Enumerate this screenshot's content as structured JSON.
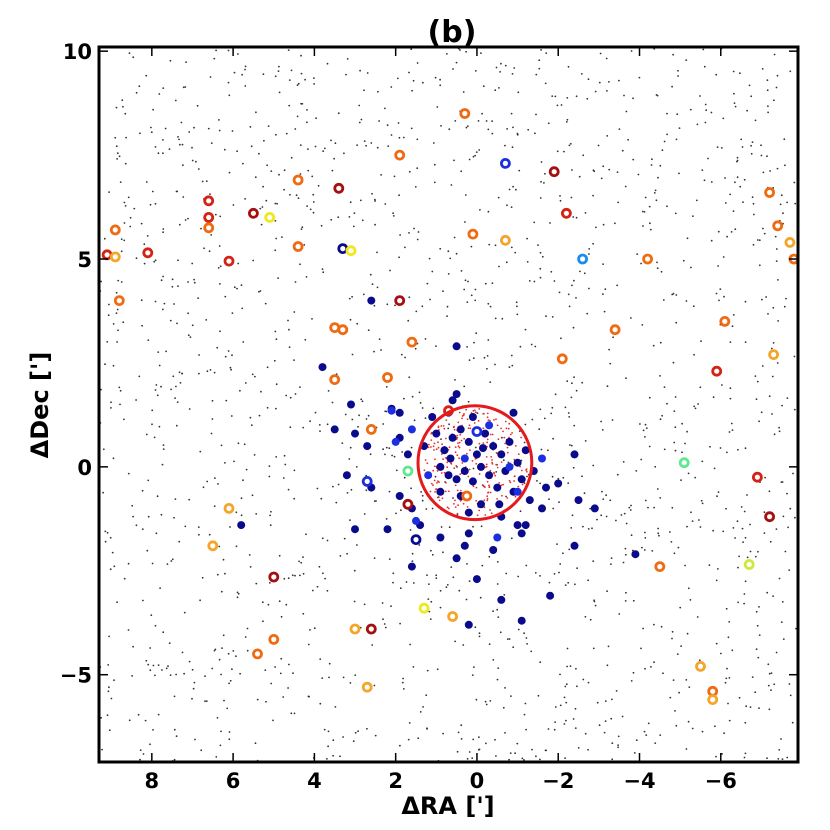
{
  "chart_data": {
    "type": "scatter",
    "title": "(b)",
    "xlabel": "ΔRA [']",
    "ylabel": "ΔDec [']",
    "xlim": [
      9.3,
      -7.9
    ],
    "ylim": [
      -7.1,
      10.1
    ],
    "x_ticks": [
      8,
      6,
      4,
      2,
      0,
      -2,
      -4,
      -6
    ],
    "x_tick_labels": [
      "8",
      "6",
      "4",
      "2",
      "0",
      "−2",
      "−4",
      "−6"
    ],
    "y_ticks": [
      -5,
      0,
      5,
      10
    ],
    "y_tick_labels": [
      "−5",
      "0",
      "5",
      "10"
    ],
    "grid": false,
    "circle": {
      "center": [
        0.05,
        0.1
      ],
      "radius": 1.4,
      "color": "#e41a1c"
    },
    "colors": {
      "field": "#333333",
      "core": "#e8302a",
      "navy": "#0a0a8c",
      "blue": "#1c2fe0",
      "darkred": "#a60f0f",
      "red": "#d42314",
      "orange": "#f06a12",
      "lightorange": "#f5a52a",
      "yellow": "#f0e81e",
      "lime": "#cfe83a",
      "green": "#5fe890",
      "skyblue": "#1a8cf0"
    },
    "series": [
      {
        "marker": "filled",
        "color": "navy",
        "points": [
          [
            2.6,
            4.0
          ],
          [
            0.5,
            2.9
          ],
          [
            3.8,
            2.4
          ],
          [
            3.1,
            1.5
          ],
          [
            2.1,
            1.4
          ],
          [
            1.9,
            1.3
          ],
          [
            1.1,
            1.2
          ],
          [
            0.6,
            1.6
          ],
          [
            0.5,
            1.75
          ],
          [
            0.1,
            1.2
          ],
          [
            -0.9,
            1.3
          ],
          [
            3.5,
            0.9
          ],
          [
            3.0,
            0.8
          ],
          [
            2.7,
            0.5
          ],
          [
            1.9,
            0.7
          ],
          [
            1.7,
            0.3
          ],
          [
            1.3,
            0.5
          ],
          [
            1.0,
            0.8
          ],
          [
            0.8,
            0.4
          ],
          [
            0.6,
            0.7
          ],
          [
            0.4,
            0.9
          ],
          [
            0.2,
            0.6
          ],
          [
            0.0,
            0.3
          ],
          [
            -0.2,
            0.8
          ],
          [
            -0.4,
            0.5
          ],
          [
            -0.6,
            0.3
          ],
          [
            -0.8,
            0.6
          ],
          [
            -1.0,
            0.1
          ],
          [
            -1.2,
            0.4
          ],
          [
            -1.4,
            -0.1
          ],
          [
            0.9,
            0.0
          ],
          [
            0.7,
            -0.2
          ],
          [
            0.5,
            -0.3
          ],
          [
            0.3,
            -0.1
          ],
          [
            0.1,
            -0.35
          ],
          [
            -0.1,
            0.0
          ],
          [
            -0.3,
            -0.2
          ],
          [
            -0.5,
            -0.5
          ],
          [
            -0.7,
            -0.1
          ],
          [
            -0.9,
            -0.6
          ],
          [
            -1.1,
            -0.3
          ],
          [
            -1.3,
            -0.8
          ],
          [
            3.2,
            -0.2
          ],
          [
            2.6,
            -0.5
          ],
          [
            1.9,
            -0.7
          ],
          [
            1.6,
            -1.0
          ],
          [
            0.9,
            -0.6
          ],
          [
            0.4,
            -0.7
          ],
          [
            0.2,
            -1.1
          ],
          [
            -0.1,
            -0.9
          ],
          [
            -0.6,
            -1.2
          ],
          [
            -1.0,
            -1.4
          ],
          [
            -1.6,
            -1.0
          ],
          [
            -2.0,
            -0.4
          ],
          [
            -2.4,
            0.3
          ],
          [
            -2.5,
            -0.8
          ],
          [
            -2.9,
            -1.0
          ],
          [
            -1.7,
            -0.5
          ],
          [
            -1.2,
            -1.4
          ],
          [
            3.0,
            -1.5
          ],
          [
            2.2,
            -1.5
          ],
          [
            1.4,
            -1.4
          ],
          [
            0.9,
            -1.7
          ],
          [
            0.2,
            -1.6
          ],
          [
            -0.4,
            -2.0
          ],
          [
            -1.1,
            -1.6
          ],
          [
            -2.4,
            -1.9
          ],
          [
            0.3,
            -1.9
          ],
          [
            -3.9,
            -2.1
          ],
          [
            5.8,
            -1.4
          ],
          [
            0.5,
            -2.2
          ],
          [
            1.6,
            -2.4
          ],
          [
            0.0,
            -2.7
          ],
          [
            -0.6,
            -3.2
          ],
          [
            -1.8,
            -3.1
          ],
          [
            -1.1,
            -3.7
          ],
          [
            0.2,
            -3.8
          ],
          [
            0.25,
            -0.7
          ],
          [
            -0.15,
            0.45
          ],
          [
            0.65,
            0.2
          ],
          [
            -0.55,
            -0.9
          ]
        ]
      },
      {
        "marker": "filled",
        "color": "blue",
        "points": [
          [
            2.1,
            1.35
          ],
          [
            1.6,
            0.9
          ],
          [
            1.2,
            -0.2
          ],
          [
            0.3,
            0.2
          ],
          [
            -0.3,
            1.0
          ],
          [
            -0.8,
            0.0
          ],
          [
            -1.0,
            -0.6
          ],
          [
            1.5,
            -1.3
          ],
          [
            -1.6,
            0.2
          ],
          [
            0.7,
            1.3
          ],
          [
            -0.5,
            -1.7
          ],
          [
            2.0,
            0.6
          ]
        ]
      },
      {
        "marker": "ring",
        "points": [
          [
            0.3,
            8.5,
            "orange"
          ],
          [
            -0.7,
            7.3,
            "blue"
          ],
          [
            1.9,
            7.5,
            "orange"
          ],
          [
            -1.9,
            7.1,
            "darkred"
          ],
          [
            4.4,
            6.9,
            "orange"
          ],
          [
            3.4,
            6.7,
            "darkred"
          ],
          [
            6.6,
            6.4,
            "red"
          ],
          [
            5.5,
            6.1,
            "darkred"
          ],
          [
            6.6,
            6.0,
            "red"
          ],
          [
            5.1,
            6.0,
            "yellow"
          ],
          [
            -2.2,
            6.1,
            "red"
          ],
          [
            -7.2,
            6.6,
            "orange"
          ],
          [
            -7.4,
            5.8,
            "orange"
          ],
          [
            -7.7,
            5.4,
            "lightorange"
          ],
          [
            -7.8,
            5.0,
            "orange"
          ],
          [
            6.6,
            5.75,
            "orange"
          ],
          [
            8.9,
            5.7,
            "orange"
          ],
          [
            9.1,
            5.1,
            "red"
          ],
          [
            8.9,
            5.05,
            "lightorange"
          ],
          [
            8.1,
            5.15,
            "red"
          ],
          [
            6.1,
            4.95,
            "red"
          ],
          [
            4.4,
            5.3,
            "orange"
          ],
          [
            3.3,
            5.25,
            "navy"
          ],
          [
            3.1,
            5.2,
            "yellow"
          ],
          [
            0.1,
            5.6,
            "orange"
          ],
          [
            -0.7,
            5.45,
            "lightorange"
          ],
          [
            -2.6,
            5.0,
            "skyblue"
          ],
          [
            -4.2,
            5.0,
            "orange"
          ],
          [
            8.8,
            4.0,
            "orange"
          ],
          [
            1.9,
            4.0,
            "darkred"
          ],
          [
            3.5,
            3.35,
            "orange"
          ],
          [
            3.3,
            3.3,
            "orange"
          ],
          [
            1.6,
            3.0,
            "orange"
          ],
          [
            -3.4,
            3.3,
            "orange"
          ],
          [
            -6.1,
            3.5,
            "orange"
          ],
          [
            3.5,
            2.1,
            "orange"
          ],
          [
            2.2,
            2.15,
            "orange"
          ],
          [
            -2.1,
            2.6,
            "orange"
          ],
          [
            -7.3,
            2.7,
            "lightorange"
          ],
          [
            -5.9,
            2.3,
            "red"
          ],
          [
            2.6,
            0.9,
            "orange"
          ],
          [
            0.7,
            1.35,
            "red"
          ],
          [
            0.0,
            0.85,
            "blue"
          ],
          [
            -5.1,
            0.1,
            "green"
          ],
          [
            -6.9,
            -0.25,
            "red"
          ],
          [
            -7.2,
            -1.2,
            "darkred"
          ],
          [
            1.7,
            -0.1,
            "green"
          ],
          [
            2.7,
            -0.35,
            "blue"
          ],
          [
            1.7,
            -0.9,
            "darkred"
          ],
          [
            0.25,
            -0.7,
            "orange"
          ],
          [
            6.1,
            -1.0,
            "lightorange"
          ],
          [
            6.5,
            -1.9,
            "lightorange"
          ],
          [
            1.5,
            -1.75,
            "navy"
          ],
          [
            -4.5,
            -2.4,
            "orange"
          ],
          [
            -6.7,
            -2.35,
            "lime"
          ],
          [
            5.0,
            -2.65,
            "darkred"
          ],
          [
            1.3,
            -3.4,
            "yellow"
          ],
          [
            0.6,
            -3.6,
            "lightorange"
          ],
          [
            3.0,
            -3.9,
            "lightorange"
          ],
          [
            2.6,
            -3.9,
            "darkred"
          ],
          [
            5.0,
            -4.15,
            "orange"
          ],
          [
            5.4,
            -4.5,
            "orange"
          ],
          [
            -5.5,
            -4.8,
            "lightorange"
          ],
          [
            -5.8,
            -5.4,
            "orange"
          ],
          [
            -5.8,
            -5.6,
            "lightorange"
          ],
          [
            2.7,
            -5.3,
            "lightorange"
          ]
        ]
      }
    ]
  }
}
